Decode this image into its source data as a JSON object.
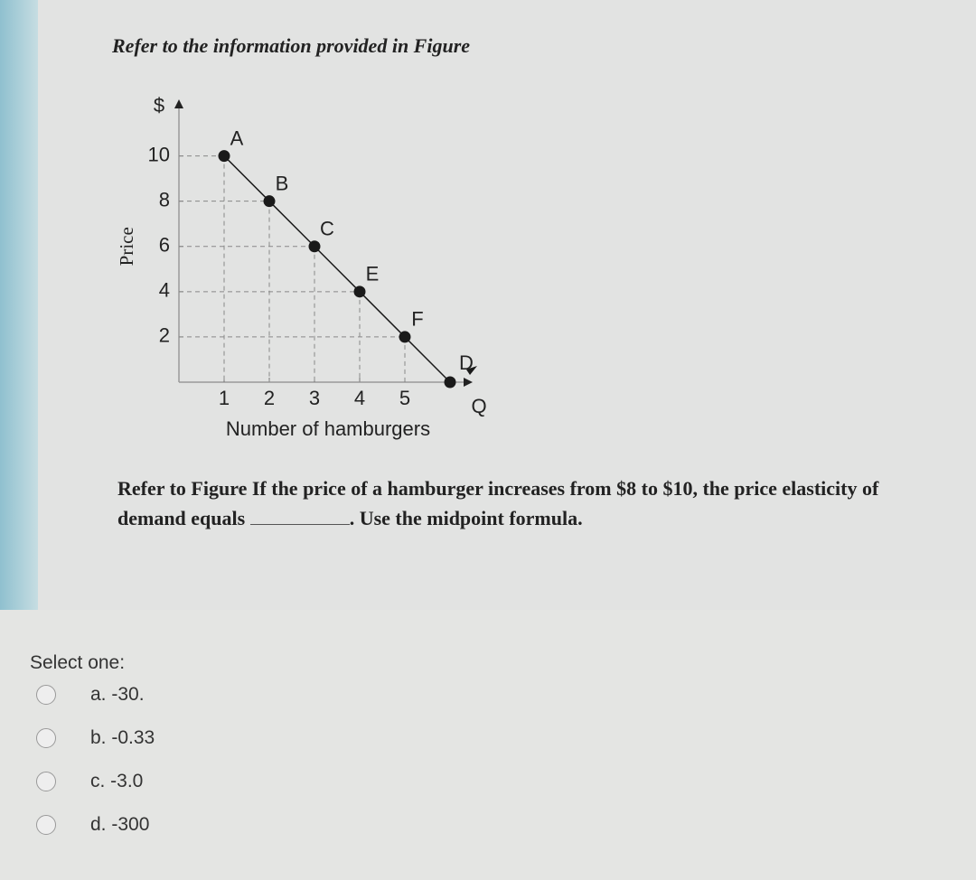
{
  "header": {
    "title": "Refer to the information provided in Figure"
  },
  "chart_data": {
    "type": "line",
    "y_axis_label": "$",
    "y_title": "Price",
    "x_axis_label": "Q",
    "x_title": "Number of hamburgers",
    "curve_label": "D",
    "x": [
      1,
      2,
      3,
      4,
      5,
      6
    ],
    "values": [
      10,
      8,
      6,
      4,
      2,
      0
    ],
    "point_labels": [
      "A",
      "B",
      "C",
      "E",
      "F",
      null
    ],
    "color": "#1a1a1a",
    "xlim": [
      0,
      6.5
    ],
    "ylim": [
      0,
      12.5
    ],
    "xticks": [
      1,
      2,
      3,
      4,
      5
    ],
    "yticks": [
      2,
      4,
      6,
      8,
      10
    ]
  },
  "question": {
    "before": "Refer to Figure If the price of a hamburger increases from $8 to $10, the price elasticity of demand equals",
    "after": ". Use the midpoint formula."
  },
  "answer": {
    "prompt": "Select one:",
    "options": [
      "a. -30.",
      "b. -0.33",
      "c. -3.0",
      "d. -300"
    ]
  }
}
